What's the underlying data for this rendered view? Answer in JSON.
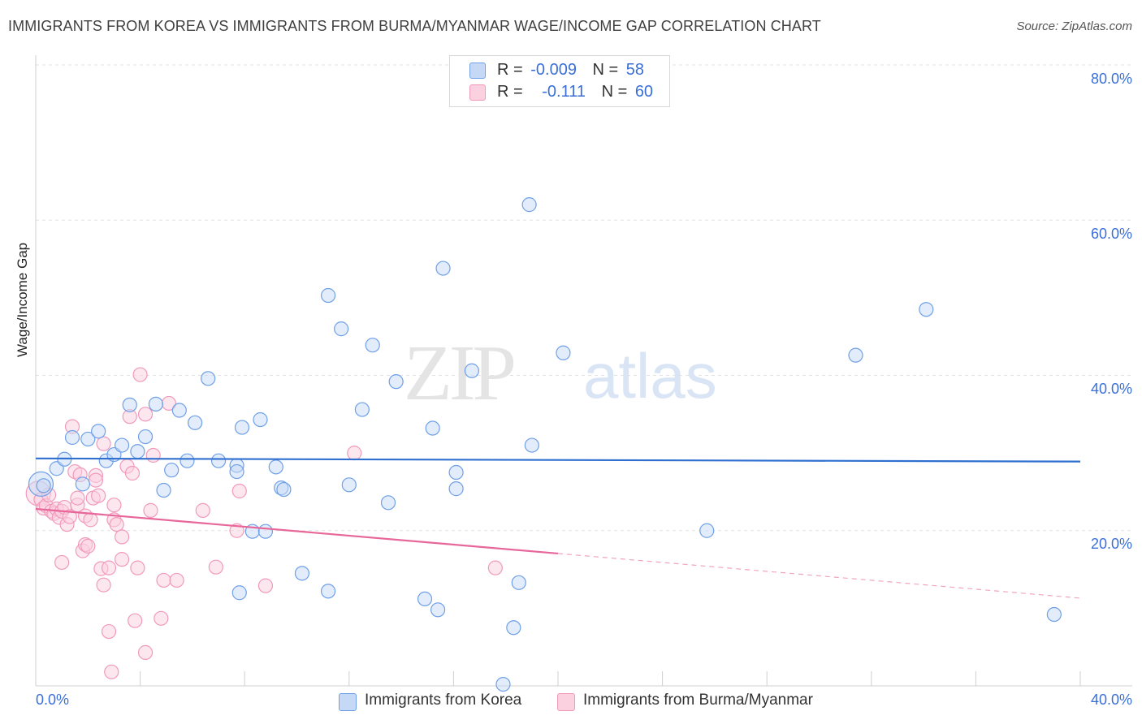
{
  "header": {
    "title": "IMMIGRANTS FROM KOREA VS IMMIGRANTS FROM BURMA/MYANMAR WAGE/INCOME GAP CORRELATION CHART",
    "source": "Source: ZipAtlas.com"
  },
  "legend_top": {
    "rows": [
      {
        "r_label": "R =",
        "r_value": "-0.009",
        "n_label": "N =",
        "n_value": "58",
        "color": "#6fa0e8"
      },
      {
        "r_label": "R =",
        "r_value": "-0.111",
        "n_label": "N =",
        "n_value": "60",
        "color": "#f19abb"
      }
    ]
  },
  "legend_bottom": [
    {
      "label": "Immigrants from Korea",
      "color": "#6fa0e8"
    },
    {
      "label": "Immigrants from Burma/Myanmar",
      "color": "#f19abb"
    }
  ],
  "watermark": {
    "zip": "ZIP",
    "atlas": "atlas"
  },
  "chart_data": {
    "type": "scatter",
    "ylabel": "Wage/Income Gap",
    "xlabel": "",
    "xlim": [
      0,
      40
    ],
    "ylim": [
      0,
      80
    ],
    "x_tick_labels": [
      "0.0%",
      "40.0%"
    ],
    "y_tick_labels": [
      "20.0%",
      "40.0%",
      "60.0%",
      "80.0%"
    ],
    "y_ticks": [
      20,
      40,
      60,
      80
    ],
    "grid": true,
    "legend_position": "top-center",
    "series": [
      {
        "name": "Immigrants from Korea",
        "color": "#6fa0e8",
        "trend": {
          "x": [
            0,
            40
          ],
          "y": [
            29.3,
            28.9
          ],
          "solid_until": 40
        },
        "points": [
          [
            0.2,
            26.0
          ],
          [
            0.3,
            25.8
          ],
          [
            0.8,
            28.0
          ],
          [
            1.1,
            29.2
          ],
          [
            1.4,
            32.0
          ],
          [
            1.8,
            26.0
          ],
          [
            2.0,
            31.8
          ],
          [
            2.4,
            32.8
          ],
          [
            2.7,
            29.0
          ],
          [
            3.0,
            29.8
          ],
          [
            3.3,
            31.0
          ],
          [
            3.6,
            36.2
          ],
          [
            3.9,
            30.2
          ],
          [
            4.2,
            32.1
          ],
          [
            4.6,
            36.3
          ],
          [
            4.9,
            25.2
          ],
          [
            5.2,
            27.8
          ],
          [
            5.5,
            35.5
          ],
          [
            5.8,
            29.0
          ],
          [
            6.1,
            33.9
          ],
          [
            6.6,
            39.6
          ],
          [
            7.0,
            29.0
          ],
          [
            7.7,
            28.4
          ],
          [
            7.8,
            12.0
          ],
          [
            7.7,
            27.6
          ],
          [
            7.9,
            33.3
          ],
          [
            8.3,
            19.9
          ],
          [
            8.6,
            34.3
          ],
          [
            8.8,
            19.9
          ],
          [
            9.2,
            28.2
          ],
          [
            9.4,
            25.5
          ],
          [
            9.5,
            25.3
          ],
          [
            10.2,
            14.5
          ],
          [
            11.2,
            12.2
          ],
          [
            11.2,
            50.3
          ],
          [
            11.7,
            46.0
          ],
          [
            12.0,
            25.9
          ],
          [
            12.5,
            35.6
          ],
          [
            12.9,
            43.9
          ],
          [
            13.5,
            23.6
          ],
          [
            13.8,
            39.2
          ],
          [
            14.9,
            11.2
          ],
          [
            15.2,
            33.2
          ],
          [
            15.4,
            9.8
          ],
          [
            15.6,
            53.8
          ],
          [
            16.1,
            27.5
          ],
          [
            16.1,
            25.4
          ],
          [
            16.7,
            40.6
          ],
          [
            17.9,
            0.2
          ],
          [
            18.3,
            7.5
          ],
          [
            18.5,
            13.3
          ],
          [
            18.9,
            62.0
          ],
          [
            19.0,
            31.0
          ],
          [
            20.2,
            42.9
          ],
          [
            25.7,
            20.0
          ],
          [
            31.4,
            42.6
          ],
          [
            34.1,
            48.5
          ],
          [
            39.0,
            9.2
          ]
        ]
      },
      {
        "name": "Immigrants from Burma/Myanmar",
        "color": "#f19abb",
        "trend": {
          "x": [
            0,
            40
          ],
          "y": [
            22.8,
            11.3
          ],
          "solid_until": 20
        },
        "points": [
          [
            0.1,
            24.8
          ],
          [
            0.2,
            24.0
          ],
          [
            0.3,
            22.9
          ],
          [
            0.4,
            23.2
          ],
          [
            0.5,
            24.6
          ],
          [
            0.6,
            22.5
          ],
          [
            0.7,
            22.2
          ],
          [
            0.8,
            22.8
          ],
          [
            0.9,
            21.7
          ],
          [
            1.0,
            22.5
          ],
          [
            1.1,
            23.0
          ],
          [
            1.2,
            20.8
          ],
          [
            1.3,
            21.8
          ],
          [
            1.0,
            15.9
          ],
          [
            1.4,
            33.4
          ],
          [
            1.5,
            27.6
          ],
          [
            1.6,
            23.3
          ],
          [
            1.6,
            24.2
          ],
          [
            1.7,
            27.2
          ],
          [
            1.8,
            17.4
          ],
          [
            1.9,
            21.9
          ],
          [
            1.9,
            18.2
          ],
          [
            2.0,
            18.0
          ],
          [
            2.1,
            21.4
          ],
          [
            2.2,
            24.2
          ],
          [
            2.3,
            27.1
          ],
          [
            2.3,
            26.5
          ],
          [
            2.4,
            24.5
          ],
          [
            2.5,
            15.1
          ],
          [
            2.6,
            31.2
          ],
          [
            2.6,
            13.0
          ],
          [
            2.8,
            15.2
          ],
          [
            2.8,
            7.0
          ],
          [
            2.9,
            1.8
          ],
          [
            3.0,
            23.3
          ],
          [
            3.0,
            21.4
          ],
          [
            3.1,
            20.8
          ],
          [
            3.3,
            16.3
          ],
          [
            3.3,
            19.2
          ],
          [
            3.5,
            28.3
          ],
          [
            3.6,
            34.7
          ],
          [
            3.7,
            27.4
          ],
          [
            3.8,
            8.4
          ],
          [
            3.9,
            15.2
          ],
          [
            4.0,
            40.1
          ],
          [
            4.2,
            4.3
          ],
          [
            4.2,
            35.0
          ],
          [
            4.4,
            22.6
          ],
          [
            4.5,
            29.7
          ],
          [
            4.8,
            8.7
          ],
          [
            4.9,
            13.6
          ],
          [
            5.1,
            36.4
          ],
          [
            5.4,
            13.6
          ],
          [
            6.4,
            22.6
          ],
          [
            6.9,
            15.3
          ],
          [
            7.7,
            20.0
          ],
          [
            7.8,
            25.1
          ],
          [
            8.8,
            12.9
          ],
          [
            12.2,
            30.0
          ],
          [
            17.6,
            15.2
          ]
        ]
      }
    ]
  }
}
